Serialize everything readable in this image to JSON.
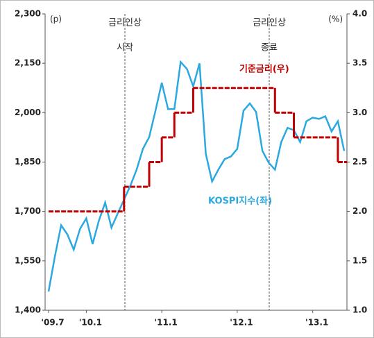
{
  "chart_data": {
    "type": "line",
    "y_unit": "(p)",
    "y2_unit": "(%)",
    "categories": [
      "'09.7",
      null,
      null,
      null,
      null,
      null,
      "'10.1",
      null,
      null,
      null,
      null,
      null,
      null,
      null,
      null,
      null,
      null,
      null,
      "'11.1",
      null,
      null,
      null,
      null,
      null,
      null,
      null,
      null,
      null,
      null,
      null,
      "'12.1",
      null,
      null,
      null,
      null,
      null,
      null,
      null,
      null,
      null,
      null,
      null,
      "'13.1",
      null,
      null,
      null,
      null,
      null
    ],
    "series": [
      {
        "name": "KOSPI지수(좌)",
        "color": "#2aa8df",
        "axis": "y",
        "values": [
          1457,
          1563,
          1658,
          1630,
          1584,
          1647,
          1679,
          1601,
          1672,
          1727,
          1651,
          1694,
          1736,
          1778,
          1827,
          1890,
          1926,
          2006,
          2091,
          2011,
          2011,
          2154,
          2133,
          2080,
          2150,
          1875,
          1791,
          1827,
          1859,
          1867,
          1890,
          2006,
          2028,
          2002,
          1884,
          1848,
          1827,
          1911,
          1954,
          1947,
          1911,
          1974,
          1985,
          1981,
          1989,
          1943,
          1974,
          1884
        ]
      },
      {
        "name": "기준금리(우)",
        "color": "#c00000",
        "axis": "y2",
        "values": [
          2.0,
          2.0,
          2.0,
          2.0,
          2.0,
          2.0,
          2.0,
          2.0,
          2.0,
          2.0,
          2.0,
          2.0,
          2.25,
          2.25,
          2.25,
          2.25,
          2.5,
          2.5,
          2.75,
          2.75,
          3.0,
          3.0,
          3.0,
          3.25,
          3.25,
          3.25,
          3.25,
          3.25,
          3.25,
          3.25,
          3.25,
          3.25,
          3.25,
          3.25,
          3.25,
          3.25,
          3.0,
          3.0,
          3.0,
          2.75,
          2.75,
          2.75,
          2.75,
          2.75,
          2.75,
          2.75,
          2.5,
          2.5
        ]
      }
    ],
    "annotations": [
      [
        "금리인상",
        "시작"
      ],
      [
        "금리인상",
        "종료"
      ]
    ],
    "ylim": [
      1400,
      2300
    ],
    "yticks": [
      {
        "value": 1400,
        "label": "1,400"
      },
      {
        "value": 1550,
        "label": "1,550"
      },
      {
        "value": 1700,
        "label": "1,700"
      },
      {
        "value": 1850,
        "label": "1,850"
      },
      {
        "value": 2000,
        "label": "2,000"
      },
      {
        "value": 2150,
        "label": "2,150"
      },
      {
        "value": 2300,
        "label": "2,300"
      }
    ],
    "y2lim": [
      1.0,
      4.0
    ],
    "y2ticks": [
      {
        "value": 1.0,
        "label": "1.0"
      },
      {
        "value": 1.5,
        "label": "1.5"
      },
      {
        "value": 2.0,
        "label": "2.0"
      },
      {
        "value": 2.5,
        "label": "2.5"
      },
      {
        "value": 3.0,
        "label": "3.0"
      },
      {
        "value": 3.5,
        "label": "3.5"
      },
      {
        "value": 4.0,
        "label": "4.0"
      }
    ],
    "grid": false
  }
}
